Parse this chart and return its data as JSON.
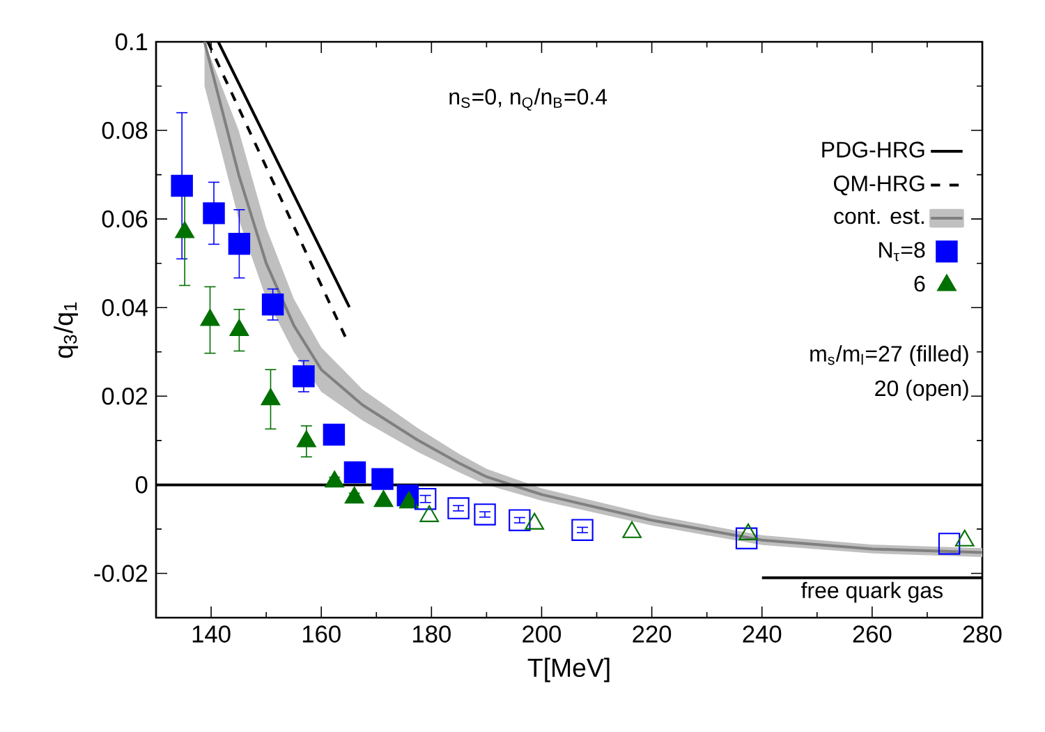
{
  "chart_data": {
    "type": "scatter",
    "xlabel": "T[MeV]",
    "ylabel": "q$_{3}$/q$_{1}$",
    "xlim": [
      130,
      280
    ],
    "xticks": [
      140,
      160,
      180,
      200,
      220,
      240,
      260,
      280
    ],
    "ylim": [
      -0.03,
      0.1
    ],
    "yticks": [
      -0.02,
      0,
      0.02,
      0.04,
      0.06,
      0.08,
      0.1
    ],
    "legend": "top right",
    "series": [
      {
        "name": "PDG-HRG",
        "type": "line",
        "color": "#000000",
        "line_style": "solid",
        "x": [
          141.3,
          165.1
        ],
        "values": [
          0.1,
          0.0401
        ]
      },
      {
        "name": "QM-HRG",
        "type": "line",
        "color": "#000000",
        "line_style": "dashed",
        "x": [
          139.4,
          164.7
        ],
        "values": [
          0.1,
          0.0325
        ]
      },
      {
        "name": "cont. est.",
        "type": "line",
        "color": "#808080",
        "line_style": "solid",
        "x": [
          138.8,
          145,
          150,
          155,
          160,
          167.5,
          177.5,
          185,
          190,
          200,
          220,
          240,
          260,
          280
        ],
        "values": [
          0.1,
          0.07,
          0.05,
          0.036,
          0.026,
          0.018,
          0.0101,
          0.0049,
          0.0018,
          -0.0022,
          -0.008,
          -0.0125,
          -0.0145,
          -0.0153
        ],
        "upper": [
          0.1,
          0.08,
          0.058,
          0.042,
          0.031,
          0.0215,
          0.0128,
          0.007,
          0.0036,
          -0.0008,
          -0.0068,
          -0.0114,
          -0.0135,
          -0.0143
        ],
        "lower": [
          0.09,
          0.06,
          0.042,
          0.03,
          0.021,
          0.0145,
          0.0074,
          0.0028,
          0,
          -0.0036,
          -0.0092,
          -0.0136,
          -0.0155,
          -0.0163
        ]
      },
      {
        "name": "N$_{τ}$=8",
        "color": "#0000ff",
        "marker": "square",
        "x": [
          134.7,
          140.5,
          145.1,
          151.2,
          156.8,
          162.3,
          166.1,
          171.1,
          175.7
        ],
        "values": [
          0.0675,
          0.0613,
          0.0544,
          0.0407,
          0.0245,
          0.0113,
          0.0028,
          0.0013,
          -0.0024
        ],
        "errors": [
          0.0165,
          0.007,
          0.0077,
          0.0035,
          0.0035,
          0.001,
          null,
          null,
          null
        ]
      },
      {
        "name": "6",
        "color": "#007000",
        "marker": "triangle",
        "x": [
          135.2,
          139.8,
          145.1,
          150.8,
          157.3,
          162.4,
          166.0,
          171.3,
          175.9
        ],
        "values": [
          0.057,
          0.0372,
          0.0349,
          0.0193,
          0.0098,
          0.0007,
          -0.0029,
          -0.0037,
          -0.004
        ],
        "errors": [
          0.012,
          0.0075,
          0.0047,
          0.0067,
          0.0035,
          0.001,
          0.001,
          null,
          null
        ]
      },
      {
        "color": "#0000ff",
        "marker": "square open",
        "x": [
          178.9,
          184.9,
          189.7,
          196.0,
          207.4,
          237.2,
          274.0
        ],
        "values": [
          -0.0032,
          -0.0053,
          -0.0067,
          -0.008,
          -0.0102,
          -0.0121,
          -0.0133
        ],
        "errors": [
          0.0008,
          0.0006,
          0.0006,
          0.0006,
          0.0006,
          null,
          null
        ]
      },
      {
        "color": "#007000",
        "marker": "triangle open",
        "x": [
          179.6,
          198.7,
          216.4,
          237.5,
          276.8
        ],
        "values": [
          -0.0071,
          -0.0088,
          -0.0107,
          -0.0112,
          -0.0126
        ]
      },
      {
        "type": "line",
        "color": "#000000",
        "line_style": "solid",
        "x": [
          240,
          280
        ],
        "values": [
          -0.021,
          -0.021
        ]
      }
    ],
    "ref_lines": [
      {
        "axis": "y",
        "value": 0,
        "color": "#000000"
      }
    ],
    "annotations": [
      "n$_{S}$=0, n$_{Q}$/n$_{B}$=0.4",
      "m$_{s}$/m$_{l}$=27 (filled)",
      "20 (open)",
      {
        "text": "free quark gas",
        "x": 260,
        "y": -0.021
      }
    ]
  }
}
